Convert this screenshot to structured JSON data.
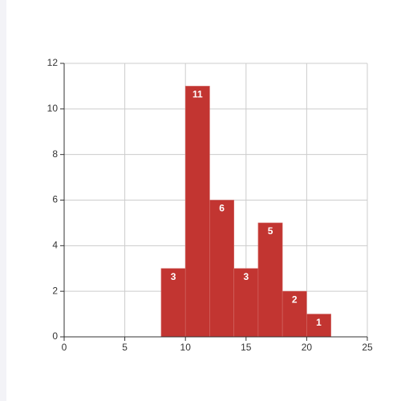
{
  "chart_data": {
    "type": "histogram",
    "bins": [
      8,
      10,
      12,
      14,
      16,
      18,
      20,
      22
    ],
    "values": [
      3,
      11,
      6,
      3,
      5,
      2,
      1
    ],
    "color": "#c23531",
    "xlim": [
      0,
      25
    ],
    "xticks": [
      0,
      5,
      10,
      15,
      20,
      25
    ],
    "ylim": [
      0,
      12
    ],
    "yticks": [
      0,
      2,
      4,
      6,
      8,
      10,
      12
    ],
    "grid": true
  }
}
